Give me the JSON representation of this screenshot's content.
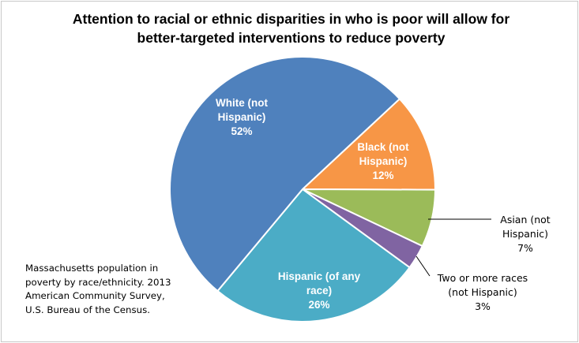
{
  "chart_data": {
    "type": "pie",
    "title_lines": [
      "Attention to racial or ethnic disparities in who is poor will allow for",
      "better-targeted interventions to reduce poverty"
    ],
    "slices": [
      {
        "label_lines": [
          "Black (not",
          "Hispanic)"
        ],
        "value": 12,
        "value_label": "12%",
        "color": "#f79646",
        "label_position": "inside"
      },
      {
        "label_lines": [
          "Asian (not",
          "Hispanic)"
        ],
        "value": 7,
        "value_label": "7%",
        "color": "#9bbb59",
        "label_position": "outside"
      },
      {
        "label_lines": [
          "Two or more races",
          "(not Hispanic)"
        ],
        "value": 3,
        "value_label": "3%",
        "color": "#8064a2",
        "label_position": "outside"
      },
      {
        "label_lines": [
          "Hispanic (of any",
          "race)"
        ],
        "value": 26,
        "value_label": "26%",
        "color": "#4bacc6",
        "label_position": "inside"
      },
      {
        "label_lines": [
          "White (not",
          "Hispanic)"
        ],
        "value": 52,
        "value_label": "52%",
        "color": "#4f81bd",
        "label_position": "inside"
      }
    ]
  },
  "note_lines": [
    "Massachusetts population in",
    "poverty by race/ethnicity. 2013",
    "American Community Survey,",
    "U.S. Bureau of the Census."
  ]
}
